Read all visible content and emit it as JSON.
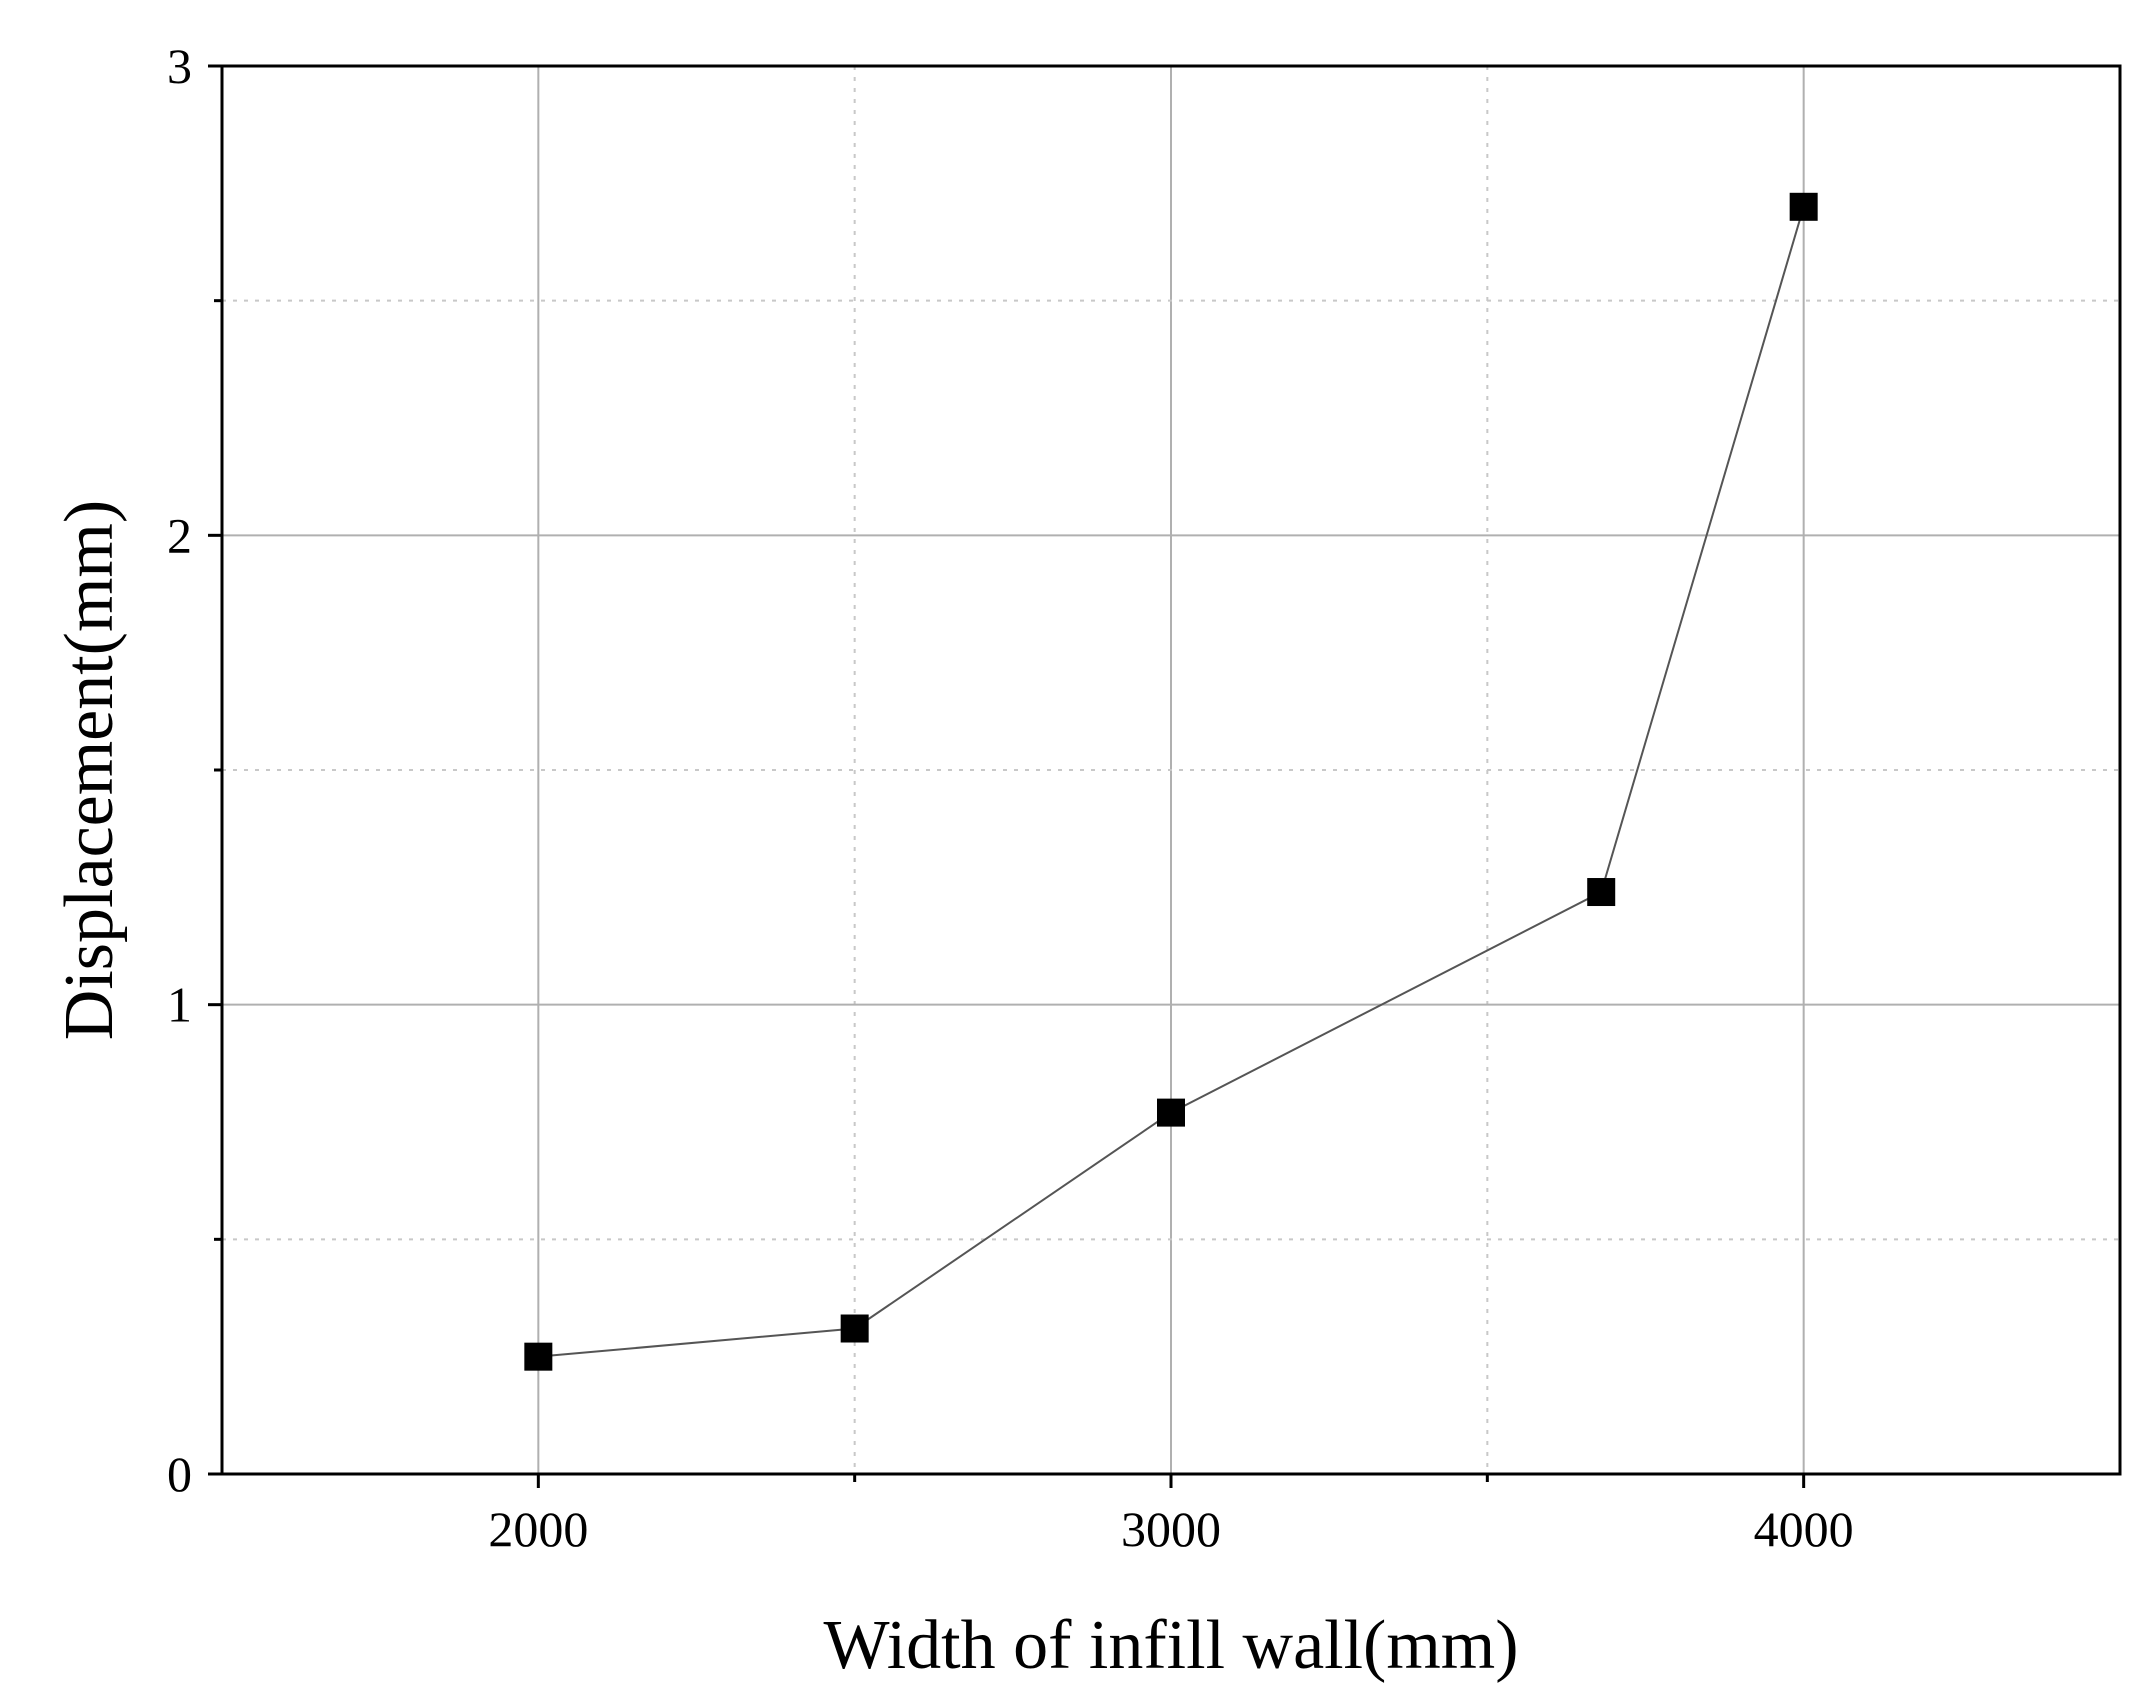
{
  "chart_data": {
    "type": "line",
    "title": "",
    "xlabel": "Width of infill wall(mm)",
    "ylabel": "Displacement(mm)",
    "xlim": [
      1500,
      4500
    ],
    "ylim": [
      0,
      3
    ],
    "x_ticks": [
      2000,
      3000,
      4000
    ],
    "x_minor_ticks": [
      2500,
      3500
    ],
    "y_ticks": [
      0,
      1,
      2,
      3
    ],
    "y_minor_ticks": [
      0.5,
      1.5,
      2.5
    ],
    "x_tick_labels": [
      "2000",
      "3000",
      "4000"
    ],
    "y_tick_labels": [
      "0",
      "1",
      "2",
      "3"
    ],
    "grid": true,
    "series": [
      {
        "x": [
          2000,
          2500,
          3000,
          3680,
          4000
        ],
        "y": [
          0.25,
          0.31,
          0.77,
          1.24,
          2.7
        ],
        "marker": "square",
        "line_color": "#555555",
        "marker_color": "#000000"
      }
    ]
  }
}
